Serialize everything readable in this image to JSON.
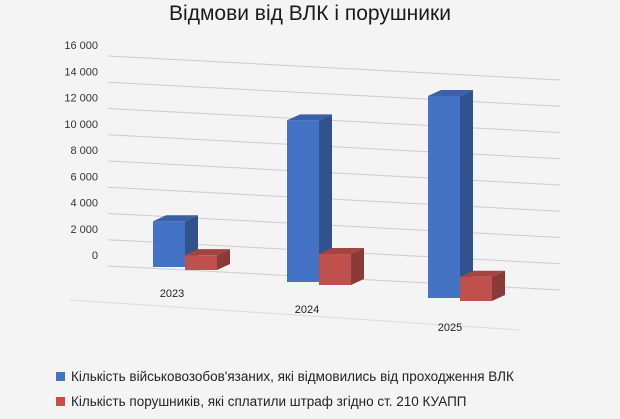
{
  "chart_data": {
    "type": "bar",
    "variant": "3d-clustered-column",
    "title": "Відмови від ВЛК і порушники",
    "categories": [
      "2023",
      "2024",
      "2025"
    ],
    "ylim": [
      0,
      16000
    ],
    "yticks": [
      "0",
      "2 000",
      "4 000",
      "6 000",
      "8 000",
      "10 000",
      "12 000",
      "14 000",
      "16 000"
    ],
    "ytick_values": [
      0,
      2000,
      4000,
      6000,
      8000,
      10000,
      12000,
      14000,
      16000
    ],
    "grid": true,
    "legend_position": "bottom",
    "series": [
      {
        "name": "Кількість військовозобов'язаних, які відмовились від проходження ВЛК",
        "color": "#4472c4",
        "values": [
          3400,
          12000,
          15000
        ]
      },
      {
        "name": "Кількість порушників, які сплатили штраф згідно ст. 210 КУАПП",
        "color": "#c0504d",
        "values": [
          1100,
          2300,
          1800
        ]
      }
    ]
  }
}
